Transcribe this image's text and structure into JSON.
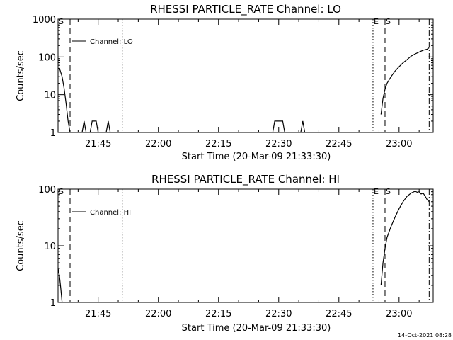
{
  "footer_timestamp": "14-Oct-2021 08:28",
  "chart_data": [
    {
      "type": "line",
      "title": "RHESSI PARTICLE_RATE Channel: LO",
      "xlabel": "Start Time (20-Mar-09 21:33:30)",
      "ylabel": "Counts/sec",
      "yscale": "log",
      "ylim": [
        1,
        1000
      ],
      "xlim": [
        "21:35:00",
        "23:08:30"
      ],
      "xticks": [
        "21:45",
        "22:00",
        "22:15",
        "22:30",
        "22:45",
        "23:00"
      ],
      "yticks": [
        "1",
        "10",
        "100",
        "1000"
      ],
      "grid": false,
      "legend": {
        "label": "Channel: LO",
        "position": "top-left"
      },
      "markers": [
        {
          "label": "S",
          "time": "21:35:00",
          "style": "dash-dot"
        },
        {
          "label": "",
          "time": "21:38:00",
          "style": "dashed"
        },
        {
          "label": "",
          "time": "21:51:00",
          "style": "dotted"
        },
        {
          "label": "E",
          "time": "22:53:30",
          "style": "dotted"
        },
        {
          "label": "S",
          "time": "22:56:30",
          "style": "dashed"
        },
        {
          "label": "",
          "time": "23:07:30",
          "style": "dash-dot"
        }
      ],
      "segments": [
        {
          "x": [
            "21:35:00",
            "21:35:30",
            "21:36:00",
            "21:36:30",
            "21:37:00",
            "21:37:30",
            "21:38:00"
          ],
          "y": [
            50,
            45,
            30,
            15,
            6,
            2,
            1
          ]
        },
        {
          "x": [
            "21:41:00",
            "21:41:30",
            "21:42:00"
          ],
          "y": [
            1,
            2,
            1
          ]
        },
        {
          "x": [
            "21:43:00",
            "21:43:30",
            "21:44:00",
            "21:44:30",
            "21:45:00"
          ],
          "y": [
            1,
            2,
            2,
            2,
            1
          ]
        },
        {
          "x": [
            "21:47:00",
            "21:47:30",
            "21:48:00"
          ],
          "y": [
            1,
            2,
            1
          ]
        },
        {
          "x": [
            "22:28:30",
            "22:29:00",
            "22:29:30",
            "22:31:00",
            "22:31:30"
          ],
          "y": [
            1,
            2,
            2,
            2,
            1
          ]
        },
        {
          "x": [
            "22:35:30",
            "22:36:00",
            "22:36:30"
          ],
          "y": [
            1,
            2,
            1
          ]
        },
        {
          "x": [
            "22:55:30",
            "22:56:00",
            "22:56:30",
            "22:57:00",
            "22:58:00",
            "22:59:00",
            "23:00:00",
            "23:01:00",
            "23:02:00",
            "23:03:00",
            "23:04:00",
            "23:05:00",
            "23:06:00",
            "23:07:00",
            "23:07:30"
          ],
          "y": [
            3,
            8,
            14,
            20,
            30,
            42,
            55,
            70,
            85,
            105,
            120,
            135,
            150,
            160,
            175
          ]
        }
      ]
    },
    {
      "type": "line",
      "title": "RHESSI PARTICLE_RATE Channel: HI",
      "xlabel": "Start Time (20-Mar-09 21:33:30)",
      "ylabel": "Counts/sec",
      "yscale": "log",
      "ylim": [
        1,
        100
      ],
      "xlim": [
        "21:35:00",
        "23:08:30"
      ],
      "xticks": [
        "21:45",
        "22:00",
        "22:15",
        "22:30",
        "22:45",
        "23:00"
      ],
      "yticks": [
        "1",
        "10",
        "100"
      ],
      "grid": false,
      "legend": {
        "label": "Channel: HI",
        "position": "top-left"
      },
      "markers": [
        {
          "label": "S",
          "time": "21:35:00",
          "style": "dash-dot"
        },
        {
          "label": "",
          "time": "21:38:00",
          "style": "dashed"
        },
        {
          "label": "",
          "time": "21:51:00",
          "style": "dotted"
        },
        {
          "label": "E",
          "time": "22:53:30",
          "style": "dotted"
        },
        {
          "label": "S",
          "time": "22:56:30",
          "style": "dashed"
        },
        {
          "label": "",
          "time": "23:07:30",
          "style": "dash-dot"
        }
      ],
      "segments": [
        {
          "x": [
            "21:35:00",
            "21:35:20",
            "21:35:40",
            "21:36:00"
          ],
          "y": [
            4,
            3,
            1.8,
            1
          ]
        },
        {
          "x": [
            "22:55:30",
            "22:56:00",
            "22:56:30",
            "22:57:00",
            "22:58:00",
            "22:59:00",
            "23:00:00",
            "23:01:00",
            "23:02:00",
            "23:03:00",
            "23:04:00",
            "23:04:30",
            "23:05:00",
            "23:05:30",
            "23:06:00",
            "23:06:30",
            "23:07:00",
            "23:07:30"
          ],
          "y": [
            2,
            5,
            9,
            14,
            22,
            32,
            45,
            60,
            75,
            85,
            92,
            88,
            90,
            82,
            85,
            75,
            65,
            60
          ]
        }
      ]
    }
  ]
}
